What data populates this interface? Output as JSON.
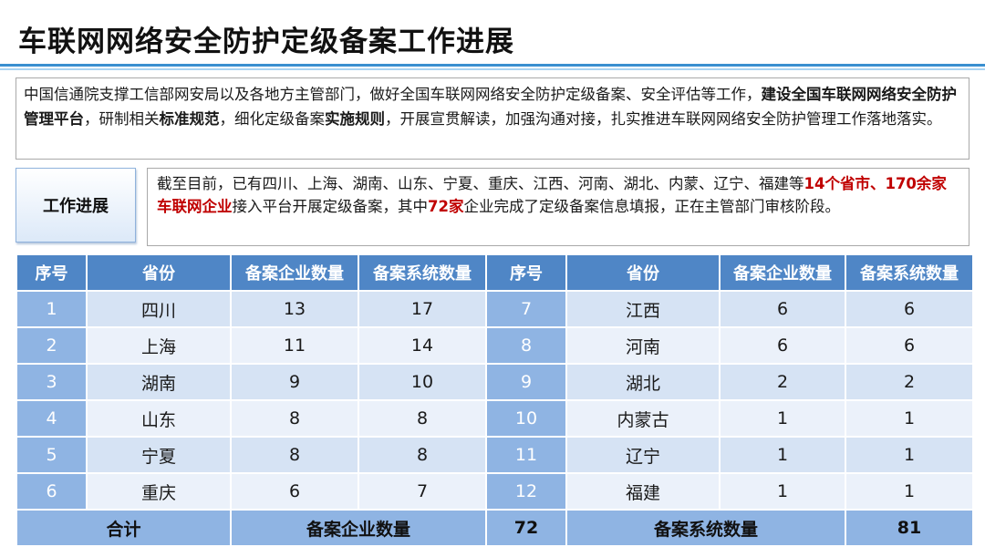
{
  "title": "车联网网络安全防护定级备案工作进展",
  "intro": {
    "p1": "中国信通院支撑工信部网安局以及各地方主管部门，做好全国车联网网络安全防护定级备案、安全评估等工作，",
    "b1": "建设全国车联网网络安全防护管理平台",
    "p2": "，研制相关",
    "b2": "标准规范",
    "p3": "，细化定级备案",
    "b3": "实施规则",
    "p4": "，开展宣贯解读，加强沟通对接，扎实推进车联网网络安全防护管理工作落地落实。"
  },
  "progress": {
    "label": "工作进展",
    "p1": "截至目前，已有四川、上海、湖南、山东、宁夏、重庆、江西、河南、湖北、内蒙、辽宁、福建等",
    "r1": "14个省市、170余家车联网企业",
    "p2": "接入平台开展定级备案，其中",
    "r2": "72家",
    "p3": "企业完成了定级备案信息填报，正在主管部门审核阶段。"
  },
  "table": {
    "headers": [
      "序号",
      "省份",
      "备案企业数量",
      "备案系统数量",
      "序号",
      "省份",
      "备案企业数量",
      "备案系统数量"
    ],
    "rows": [
      [
        "1",
        "四川",
        "13",
        "17",
        "7",
        "江西",
        "6",
        "6"
      ],
      [
        "2",
        "上海",
        "11",
        "14",
        "8",
        "河南",
        "6",
        "6"
      ],
      [
        "3",
        "湖南",
        "9",
        "10",
        "9",
        "湖北",
        "2",
        "2"
      ],
      [
        "4",
        "山东",
        "8",
        "8",
        "10",
        "内蒙古",
        "1",
        "1"
      ],
      [
        "5",
        "宁夏",
        "8",
        "8",
        "11",
        "辽宁",
        "1",
        "1"
      ],
      [
        "6",
        "重庆",
        "6",
        "7",
        "12",
        "福建",
        "1",
        "1"
      ]
    ],
    "total": {
      "label": "合计",
      "enterprise_label": "备案企业数量",
      "enterprise_value": "72",
      "system_label": "备案系统数量",
      "system_value": "81"
    }
  }
}
